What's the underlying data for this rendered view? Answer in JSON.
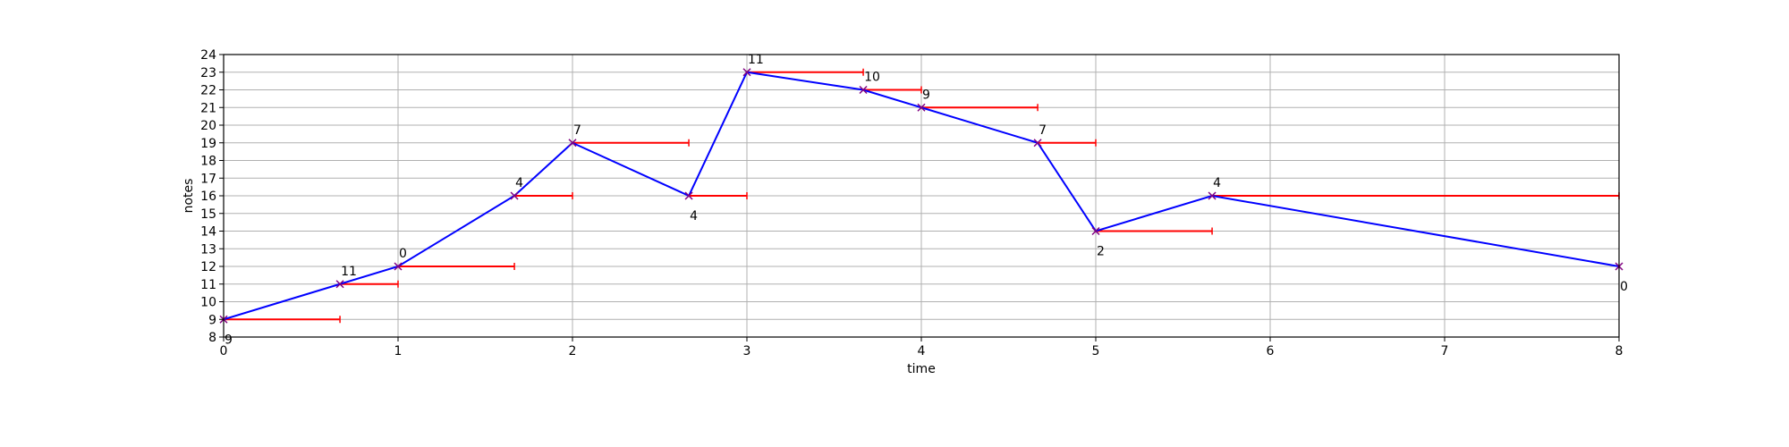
{
  "chart_data": {
    "type": "line",
    "title": "",
    "xlabel": "time",
    "ylabel": "notes",
    "xlim": [
      0,
      8
    ],
    "ylim": [
      8,
      24
    ],
    "x_ticks": [
      "0",
      "1",
      "2",
      "3",
      "4",
      "5",
      "6",
      "7",
      "8"
    ],
    "y_ticks": [
      "8",
      "9",
      "10",
      "11",
      "12",
      "13",
      "14",
      "15",
      "16",
      "17",
      "18",
      "19",
      "20",
      "21",
      "22",
      "23",
      "24"
    ],
    "grid": true,
    "legend": "none",
    "colors": {
      "line": "#0000ff",
      "marker": "#800080",
      "duration": "#ff0000",
      "grid": "#b0b0b0",
      "axis": "#000000"
    },
    "series": [
      {
        "points": [
          {
            "x": 0,
            "y": 9,
            "label": "9",
            "end": 0.667,
            "label_pos": "below"
          },
          {
            "x": 0.667,
            "y": 11,
            "label": "11",
            "end": 1.0,
            "label_pos": "above"
          },
          {
            "x": 1.0,
            "y": 12,
            "label": "0",
            "end": 1.667,
            "label_pos": "above"
          },
          {
            "x": 1.667,
            "y": 16,
            "label": "4",
            "end": 2.0,
            "label_pos": "above"
          },
          {
            "x": 2.0,
            "y": 19,
            "label": "7",
            "end": 2.667,
            "label_pos": "above"
          },
          {
            "x": 2.667,
            "y": 16,
            "label": "4",
            "end": 3.0,
            "label_pos": "below"
          },
          {
            "x": 3.0,
            "y": 23,
            "label": "11",
            "end": 3.667,
            "label_pos": "above"
          },
          {
            "x": 3.667,
            "y": 22,
            "label": "10",
            "end": 4.0,
            "label_pos": "above"
          },
          {
            "x": 4.0,
            "y": 21,
            "label": "9",
            "end": 4.667,
            "label_pos": "above"
          },
          {
            "x": 4.667,
            "y": 19,
            "label": "7",
            "end": 5.0,
            "label_pos": "above"
          },
          {
            "x": 5.0,
            "y": 14,
            "label": "2",
            "end": 5.667,
            "label_pos": "below"
          },
          {
            "x": 5.667,
            "y": 16,
            "label": "4",
            "end": 8.0,
            "label_pos": "above"
          },
          {
            "x": 8.0,
            "y": 12,
            "label": "0",
            "end": null,
            "label_pos": "below"
          }
        ]
      }
    ]
  }
}
